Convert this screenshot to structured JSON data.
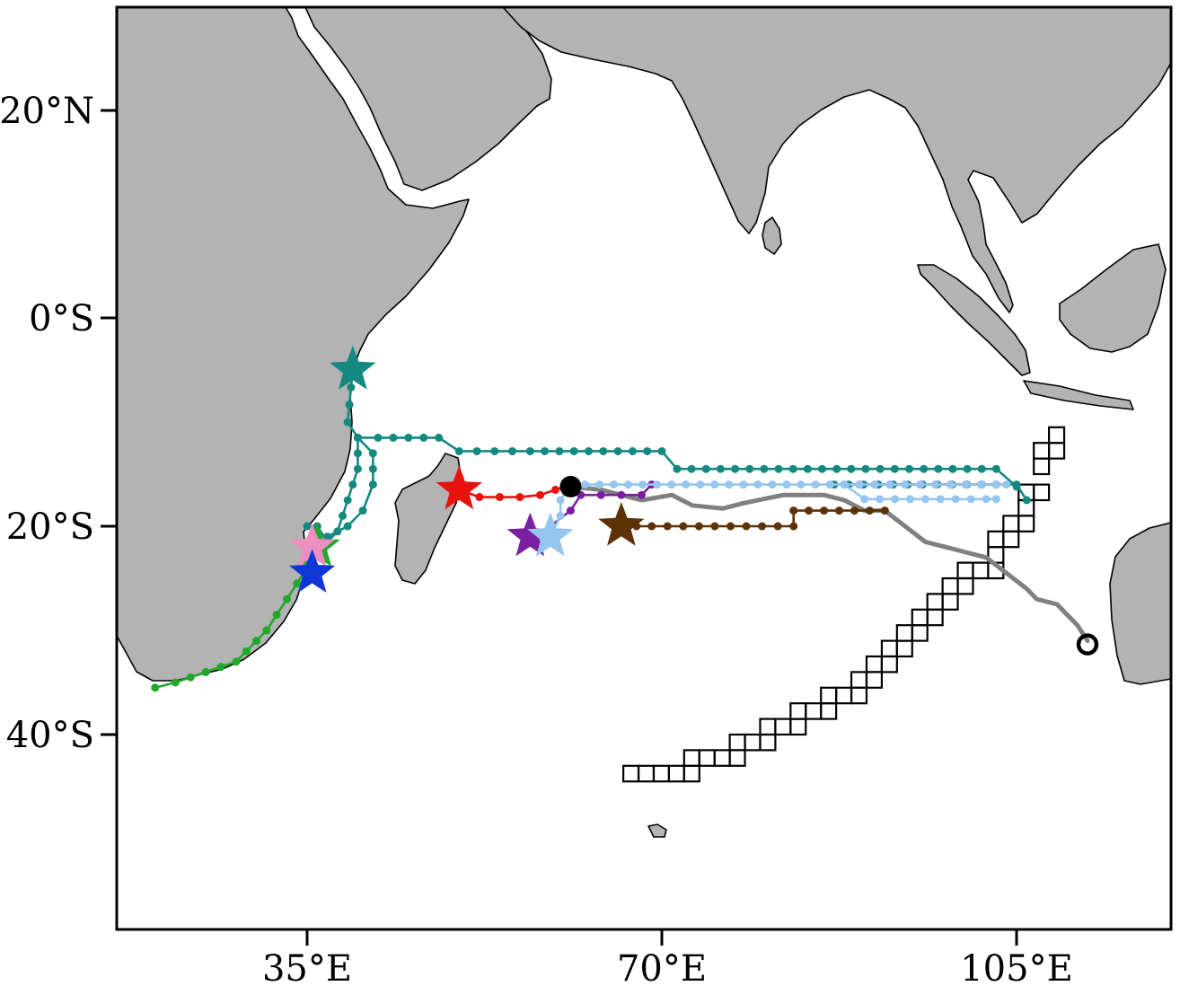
{
  "map": {
    "region": "Indian Ocean",
    "projection": "plate-carree",
    "lon_range": [
      16,
      120
    ],
    "lat_range": [
      -55,
      30
    ],
    "colors": {
      "land": "#b3b3b3",
      "ocean": "#ffffff",
      "coastline": "#000000"
    },
    "axes": {
      "y_ticks": [
        {
          "value": 20,
          "label": "20°N"
        },
        {
          "value": 0,
          "label": "0°S"
        },
        {
          "value": -20,
          "label": "20°S"
        },
        {
          "value": -40,
          "label": "40°S"
        }
      ],
      "x_ticks": [
        {
          "value": 35,
          "label": "35°E"
        },
        {
          "value": 70,
          "label": "70°E"
        },
        {
          "value": 105,
          "label": "105°E"
        }
      ]
    }
  },
  "chart_data": {
    "type": "map-trajectories",
    "title": "",
    "grid": false,
    "legend": "none",
    "tracks": [
      {
        "color": "#13897f",
        "start_marker": "star",
        "points": [
          [
            39.5,
            -5
          ],
          [
            39,
            -10
          ],
          [
            40,
            -11.5
          ],
          [
            42,
            -11.5
          ],
          [
            48,
            -11.5
          ],
          [
            50,
            -12.8
          ],
          [
            57,
            -12.8
          ],
          [
            70,
            -12.8
          ],
          [
            71.5,
            -14.5
          ],
          [
            103,
            -14.5
          ],
          [
            105,
            -16.2
          ]
        ]
      },
      {
        "color": "#13897f",
        "start_marker": "none",
        "points": [
          [
            40,
            -11.5
          ],
          [
            40,
            -14.5
          ],
          [
            39.5,
            -16
          ],
          [
            38,
            -20.5
          ],
          [
            37,
            -21.5
          ],
          [
            36,
            -20
          ],
          [
            35,
            -20
          ]
        ]
      },
      {
        "color": "#13897f",
        "start_marker": "none",
        "points": [
          [
            40,
            -11.5
          ],
          [
            41.5,
            -13
          ],
          [
            41.5,
            -16
          ],
          [
            40.5,
            -18.5
          ],
          [
            39,
            -20
          ],
          [
            37,
            -21
          ]
        ]
      },
      {
        "color": "#13897f",
        "start_marker": "none",
        "points": [
          [
            87,
            -16
          ],
          [
            103,
            -16
          ],
          [
            105,
            -16
          ],
          [
            106,
            -17.5
          ]
        ]
      },
      {
        "color": "#21a82a",
        "start_marker": "star",
        "points": [
          [
            36,
            -22
          ],
          [
            35,
            -24
          ],
          [
            33,
            -27
          ],
          [
            31,
            -30
          ],
          [
            28,
            -33
          ],
          [
            22,
            -35
          ],
          [
            20,
            -35.5
          ]
        ]
      },
      {
        "color": "#e8120c",
        "start_marker": "star",
        "points": [
          [
            50,
            -16.5
          ],
          [
            52,
            -17.2
          ],
          [
            56,
            -17.2
          ],
          [
            58,
            -17
          ],
          [
            61,
            -16
          ]
        ]
      },
      {
        "color": "#7a1fa0",
        "start_marker": "star",
        "points": [
          [
            57,
            -21
          ],
          [
            59,
            -20
          ],
          [
            61,
            -18.5
          ],
          [
            62,
            -17
          ],
          [
            66,
            -17
          ],
          [
            68,
            -17
          ],
          [
            69,
            -16
          ]
        ]
      },
      {
        "color": "#7a1fa0",
        "start_marker": "none",
        "points": [
          [
            88,
            -16
          ],
          [
            103,
            -16
          ]
        ]
      },
      {
        "color": "#94c6f0",
        "start_marker": "star",
        "points": [
          [
            59,
            -21
          ],
          [
            60,
            -19
          ],
          [
            60,
            -17.5
          ],
          [
            61,
            -16
          ],
          [
            88,
            -16
          ],
          [
            103,
            -16
          ],
          [
            104,
            -16
          ]
        ]
      },
      {
        "color": "#94c6f0",
        "start_marker": "none",
        "points": [
          [
            88,
            -16
          ],
          [
            90,
            -17.4
          ],
          [
            102,
            -17.4
          ],
          [
            103,
            -17.4
          ]
        ]
      },
      {
        "color": "#5c3206",
        "start_marker": "star",
        "points": [
          [
            66,
            -20
          ],
          [
            69,
            -20
          ],
          [
            83,
            -20
          ],
          [
            83,
            -18.5
          ],
          [
            92,
            -18.5
          ]
        ]
      },
      {
        "color": "#ec8fc0",
        "start_marker": "star",
        "points": [
          [
            35.5,
            -22
          ],
          [
            35,
            -23.5
          ]
        ]
      },
      {
        "color": "#0f37d8",
        "start_marker": "star",
        "points": [
          [
            35.5,
            -24.5
          ],
          [
            35,
            -23
          ]
        ]
      }
    ],
    "observed_track": {
      "color": "#808080",
      "end_marker": "open-circle",
      "points": [
        [
          61,
          -16.2
        ],
        [
          64,
          -16.5
        ],
        [
          68,
          -17.5
        ],
        [
          71,
          -17
        ],
        [
          73,
          -18
        ],
        [
          76,
          -18.3
        ],
        [
          78,
          -17.8
        ],
        [
          82,
          -17
        ],
        [
          86,
          -17
        ],
        [
          88,
          -17.5
        ],
        [
          90,
          -18.5
        ],
        [
          92,
          -18.5
        ],
        [
          94,
          -20
        ],
        [
          96,
          -21.5
        ],
        [
          98,
          -22
        ],
        [
          100,
          -22.5
        ],
        [
          102,
          -23
        ],
        [
          104,
          -24.5
        ],
        [
          106,
          -26
        ],
        [
          107,
          -27
        ],
        [
          109,
          -27.5
        ],
        [
          110,
          -28.5
        ],
        [
          111,
          -29.5
        ],
        [
          112,
          -31
        ]
      ]
    },
    "grid_boxes": {
      "color": "#000000",
      "box_size_deg": 1.5,
      "cells": [
        [
          108.2,
          -10.5
        ],
        [
          108.2,
          -12
        ],
        [
          106.7,
          -12
        ],
        [
          106.7,
          -13.5
        ],
        [
          106.7,
          -16
        ],
        [
          105.2,
          -16
        ],
        [
          105.2,
          -17.5
        ],
        [
          105.2,
          -19
        ],
        [
          103.7,
          -19
        ],
        [
          103.7,
          -20.5
        ],
        [
          102.2,
          -20.5
        ],
        [
          102.2,
          -22
        ],
        [
          102.2,
          -23.5
        ],
        [
          100.7,
          -23.5
        ],
        [
          99.2,
          -23.5
        ],
        [
          99.2,
          -25
        ],
        [
          97.7,
          -25
        ],
        [
          97.7,
          -26.5
        ],
        [
          96.2,
          -26.5
        ],
        [
          96.2,
          -28
        ],
        [
          94.7,
          -28
        ],
        [
          94.7,
          -29.5
        ],
        [
          93.2,
          -29.5
        ],
        [
          93.2,
          -31
        ],
        [
          91.7,
          -31
        ],
        [
          91.7,
          -32.5
        ],
        [
          90.2,
          -32.5
        ],
        [
          90.2,
          -34
        ],
        [
          88.7,
          -34
        ],
        [
          88.7,
          -35.5
        ],
        [
          87.2,
          -35.5
        ],
        [
          85.7,
          -35.5
        ],
        [
          85.7,
          -37
        ],
        [
          84.2,
          -37
        ],
        [
          82.7,
          -37
        ],
        [
          82.7,
          -38.5
        ],
        [
          81.2,
          -38.5
        ],
        [
          79.7,
          -38.5
        ],
        [
          79.7,
          -40
        ],
        [
          78.2,
          -40
        ],
        [
          76.7,
          -40
        ],
        [
          76.7,
          -41.5
        ],
        [
          75.2,
          -41.5
        ],
        [
          73.7,
          -41.5
        ],
        [
          72.2,
          -41.5
        ],
        [
          72.2,
          -43
        ],
        [
          70.7,
          -43
        ],
        [
          69.2,
          -43
        ],
        [
          67.7,
          -43
        ],
        [
          66.2,
          -43
        ]
      ]
    },
    "start_point": {
      "lon": 61,
      "lat": -16.2,
      "marker": "filled-circle",
      "color": "#000000"
    }
  }
}
